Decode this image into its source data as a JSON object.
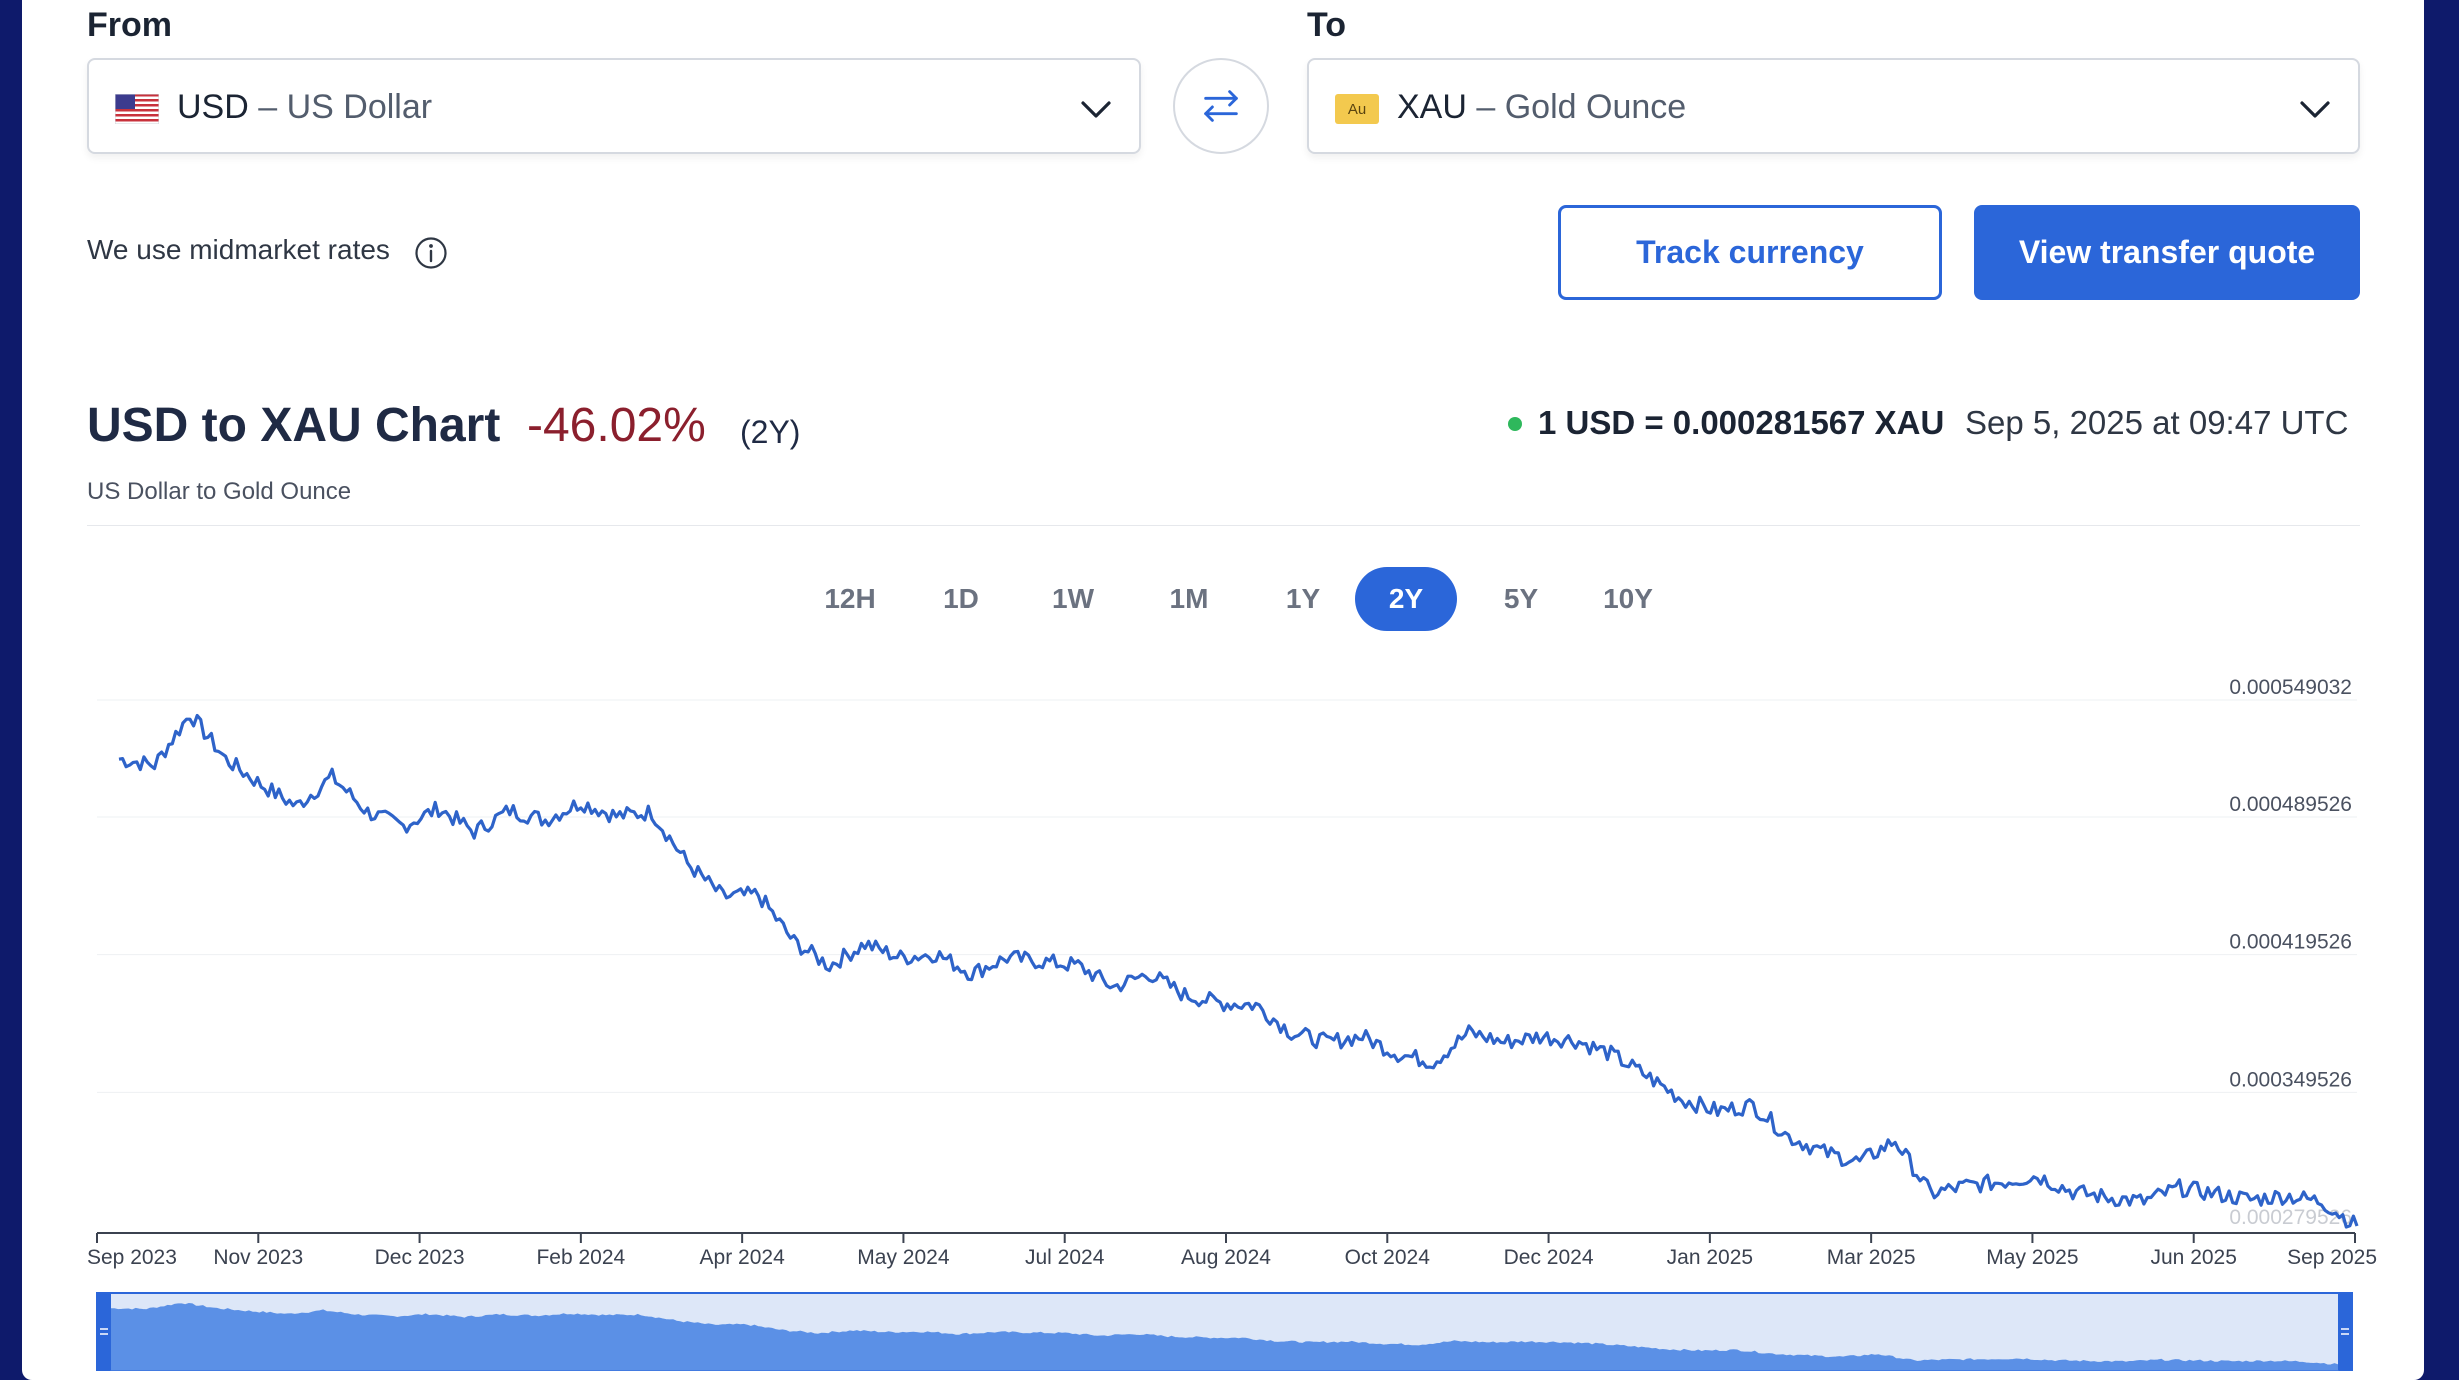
{
  "from": {
    "label": "From",
    "code": "USD",
    "sep": " – ",
    "name": "US Dollar",
    "icon": "us-flag-icon"
  },
  "to": {
    "label": "To",
    "code": "XAU",
    "sep": " – ",
    "name": "Gold Ounce",
    "icon_text": "Au"
  },
  "swap_icon": "swap-arrows-icon",
  "midmarket": "We use midmarket rates",
  "buttons": {
    "track": "Track currency",
    "quote": "View transfer quote"
  },
  "chart_header": {
    "title": "USD to XAU Chart",
    "change": "-46.02%",
    "period": "(2Y)",
    "subtitle": "US Dollar to Gold Ounce",
    "rate": "1 USD = 0.000281567 XAU",
    "timestamp": "Sep 5, 2025 at 09:47 UTC"
  },
  "ranges": [
    {
      "label": "12H",
      "active": false
    },
    {
      "label": "1D",
      "active": false
    },
    {
      "label": "1W",
      "active": false
    },
    {
      "label": "1M",
      "active": false
    },
    {
      "label": "1Y",
      "active": false
    },
    {
      "label": "2Y",
      "active": true
    },
    {
      "label": "5Y",
      "active": false
    },
    {
      "label": "10Y",
      "active": false
    }
  ],
  "colors": {
    "accent": "#2b66d9",
    "negative": "#8b1f2d",
    "live": "#2eb85c",
    "line": "#2e63c9"
  },
  "chart_data": {
    "type": "line",
    "title": "USD to XAU Chart",
    "x_tick_labels": [
      "Sep 2023",
      "Nov 2023",
      "Dec 2023",
      "Feb 2024",
      "Apr 2024",
      "May 2024",
      "Jul 2024",
      "Aug 2024",
      "Oct 2024",
      "Dec 2024",
      "Jan 2025",
      "Mar 2025",
      "May 2025",
      "Jun 2025",
      "Sep 2025"
    ],
    "y_tick_labels": [
      "0.000549032",
      "0.000489526",
      "0.000419526",
      "0.000349526",
      "0.000279526"
    ],
    "ylim": [
      0.000279526,
      0.000549032
    ],
    "grid": true,
    "series": [
      {
        "x": [
          "2023-09",
          "2023-09",
          "2023-10",
          "2023-10",
          "2023-10",
          "2023-11",
          "2023-11",
          "2023-11",
          "2023-12",
          "2023-12",
          "2023-12",
          "2024-01",
          "2024-01",
          "2024-01",
          "2024-02",
          "2024-02",
          "2024-03",
          "2024-03",
          "2024-03",
          "2024-04",
          "2024-04",
          "2024-04",
          "2024-05",
          "2024-05",
          "2024-05",
          "2024-06",
          "2024-06",
          "2024-06",
          "2024-07",
          "2024-07",
          "2024-07",
          "2024-08",
          "2024-08",
          "2024-08",
          "2024-09",
          "2024-09",
          "2024-10",
          "2024-10",
          "2024-10",
          "2024-11",
          "2024-11",
          "2024-11",
          "2024-12",
          "2024-12",
          "2025-01",
          "2025-01",
          "2025-01",
          "2025-02",
          "2025-02",
          "2025-03",
          "2025-03",
          "2025-03",
          "2025-04",
          "2025-04",
          "2025-04",
          "2025-05",
          "2025-05",
          "2025-06",
          "2025-06",
          "2025-07",
          "2025-07",
          "2025-08",
          "2025-08",
          "2025-09"
        ],
        "values": [
          0.000519,
          0.000516,
          0.000542,
          0.000519,
          0.000506,
          0.000495,
          0.00051,
          0.000492,
          0.000485,
          0.000494,
          0.000482,
          0.000493,
          0.000488,
          0.000497,
          0.00049,
          0.000492,
          0.000466,
          0.000449,
          0.00045,
          0.000426,
          0.000414,
          0.000425,
          0.000418,
          0.00042,
          0.00041,
          0.000418,
          0.000416,
          0.000414,
          0.000403,
          0.00041,
          0.000399,
          0.000395,
          0.000394,
          0.00038,
          0.000375,
          0.000378,
          0.000369,
          0.000365,
          0.00038,
          0.000375,
          0.000378,
          0.000376,
          0.000369,
          0.000358,
          0.000346,
          0.00034,
          0.000343,
          0.000327,
          0.000319,
          0.000314,
          0.000325,
          0.000298,
          0.000302,
          0.000304,
          0.000307,
          0.000299,
          0.000296,
          0.000294,
          0.000301,
          0.000298,
          0.000295,
          0.000297,
          0.000294,
          0.000281567
        ]
      }
    ]
  }
}
